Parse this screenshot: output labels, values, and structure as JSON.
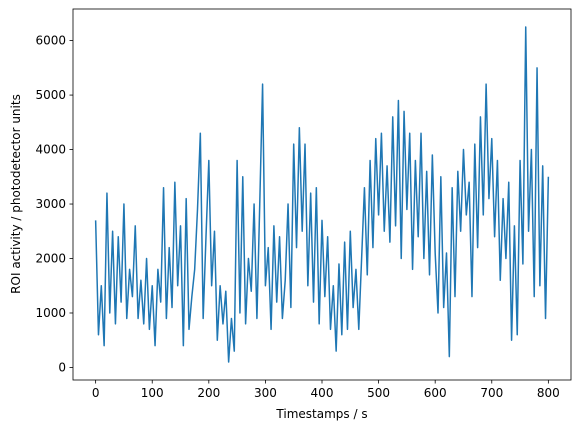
{
  "chart_data": {
    "type": "line",
    "xlabel": "Timestamps / s",
    "ylabel": "ROI activity / photodetector units",
    "x": [
      0,
      5,
      10,
      15,
      20,
      25,
      30,
      35,
      40,
      45,
      50,
      55,
      60,
      65,
      70,
      75,
      80,
      85,
      90,
      95,
      100,
      105,
      110,
      115,
      120,
      125,
      130,
      135,
      140,
      145,
      150,
      155,
      160,
      165,
      170,
      175,
      180,
      185,
      190,
      195,
      200,
      205,
      210,
      215,
      220,
      225,
      230,
      235,
      240,
      245,
      250,
      255,
      260,
      265,
      270,
      275,
      280,
      285,
      290,
      295,
      300,
      305,
      310,
      315,
      320,
      325,
      330,
      335,
      340,
      345,
      350,
      355,
      360,
      365,
      370,
      375,
      380,
      385,
      390,
      395,
      400,
      405,
      410,
      415,
      420,
      425,
      430,
      435,
      440,
      445,
      450,
      455,
      460,
      465,
      470,
      475,
      480,
      485,
      490,
      495,
      500,
      505,
      510,
      515,
      520,
      525,
      530,
      535,
      540,
      545,
      550,
      555,
      560,
      565,
      570,
      575,
      580,
      585,
      590,
      595,
      600,
      605,
      610,
      615,
      620,
      625,
      630,
      635,
      640,
      645,
      650,
      655,
      660,
      665,
      670,
      675,
      680,
      685,
      690,
      695,
      700,
      705,
      710,
      715,
      720,
      725,
      730,
      735,
      740,
      745,
      750,
      755,
      760,
      765,
      770,
      775,
      780,
      785,
      790,
      795,
      800
    ],
    "series": [
      {
        "name": "ROI",
        "color": "#1f77b4",
        "values": [
          2700,
          600,
          1500,
          400,
          3200,
          1000,
          2500,
          800,
          2400,
          1200,
          3000,
          900,
          1800,
          1300,
          2600,
          900,
          1600,
          800,
          2000,
          700,
          1500,
          400,
          1800,
          1200,
          3300,
          900,
          2200,
          1100,
          3400,
          1500,
          2600,
          400,
          3100,
          700,
          1300,
          1800,
          2900,
          4300,
          900,
          2400,
          3800,
          1500,
          2500,
          500,
          1500,
          800,
          1400,
          100,
          900,
          300,
          3800,
          1000,
          3500,
          800,
          2000,
          1400,
          3000,
          900,
          3000,
          5200,
          1500,
          2200,
          700,
          2600,
          1200,
          2400,
          900,
          1600,
          3000,
          1100,
          4100,
          2200,
          4400,
          2500,
          4100,
          1500,
          3200,
          1200,
          3300,
          800,
          2700,
          1300,
          2400,
          700,
          1500,
          300,
          1900,
          600,
          2300,
          700,
          2500,
          1100,
          1800,
          700,
          2000,
          3300,
          1700,
          3800,
          2200,
          4200,
          2800,
          4300,
          2500,
          3700,
          2300,
          4600,
          2600,
          4900,
          2000,
          4700,
          2900,
          4300,
          1800,
          3800,
          2400,
          4300,
          2000,
          3600,
          1700,
          3900,
          2100,
          1000,
          3500,
          1100,
          2100,
          200,
          3300,
          1300,
          3600,
          2500,
          4000,
          2800,
          3400,
          1300,
          4100,
          2200,
          4600,
          2800,
          5200,
          3100,
          4200,
          2400,
          3800,
          1600,
          3100,
          2000,
          3400,
          500,
          2600,
          600,
          3800,
          1900,
          6250,
          2500,
          4000,
          1300,
          5500,
          1500,
          3700,
          900,
          3500
        ]
      }
    ],
    "xlim": [
      -40,
      840
    ],
    "xticks": [
      0,
      100,
      200,
      300,
      400,
      500,
      600,
      700,
      800
    ],
    "ylim": [
      -230,
      6580
    ],
    "yticks": [
      0,
      1000,
      2000,
      3000,
      4000,
      5000,
      6000
    ]
  }
}
